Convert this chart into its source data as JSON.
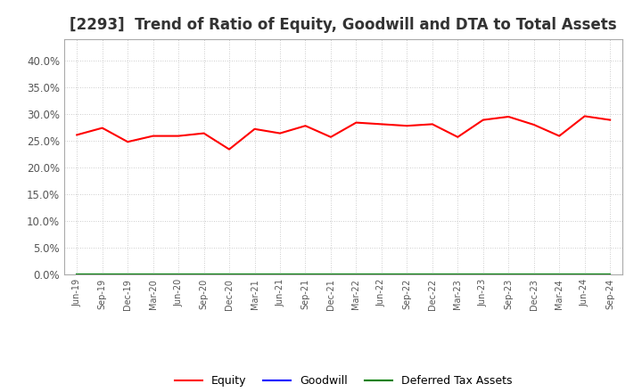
{
  "title": "[2293]  Trend of Ratio of Equity, Goodwill and DTA to Total Assets",
  "x_labels": [
    "Jun-19",
    "Sep-19",
    "Dec-19",
    "Mar-20",
    "Jun-20",
    "Sep-20",
    "Dec-20",
    "Mar-21",
    "Jun-21",
    "Sep-21",
    "Dec-21",
    "Mar-22",
    "Jun-22",
    "Sep-22",
    "Dec-22",
    "Mar-23",
    "Jun-23",
    "Sep-23",
    "Dec-23",
    "Mar-24",
    "Jun-24",
    "Sep-24"
  ],
  "equity": [
    0.261,
    0.274,
    0.248,
    0.259,
    0.259,
    0.264,
    0.234,
    0.272,
    0.264,
    0.278,
    0.257,
    0.284,
    0.281,
    0.278,
    0.281,
    0.257,
    0.289,
    0.295,
    0.28,
    0.259,
    0.296,
    0.289
  ],
  "goodwill": [
    0.0,
    0.0,
    0.0,
    0.0,
    0.0,
    0.0,
    0.0,
    0.0,
    0.0,
    0.0,
    0.0,
    0.0,
    0.0,
    0.0,
    0.0,
    0.0,
    0.0,
    0.0,
    0.0,
    0.0,
    0.0,
    0.0
  ],
  "dta": [
    0.0,
    0.0,
    0.0,
    0.0,
    0.0,
    0.0,
    0.0,
    0.0,
    0.0,
    0.0,
    0.0,
    0.0,
    0.0,
    0.0,
    0.0,
    0.0,
    0.0,
    0.0,
    0.0,
    0.0,
    0.0,
    0.0
  ],
  "equity_color": "#FF0000",
  "goodwill_color": "#0000FF",
  "dta_color": "#008000",
  "ylim": [
    0.0,
    0.44
  ],
  "yticks": [
    0.0,
    0.05,
    0.1,
    0.15,
    0.2,
    0.25,
    0.3,
    0.35,
    0.4
  ],
  "background_color": "#FFFFFF",
  "plot_bg_color": "#FFFFFF",
  "grid_color": "#BBBBBB",
  "title_fontsize": 12,
  "tick_label_color": "#555555",
  "legend_labels": [
    "Equity",
    "Goodwill",
    "Deferred Tax Assets"
  ]
}
